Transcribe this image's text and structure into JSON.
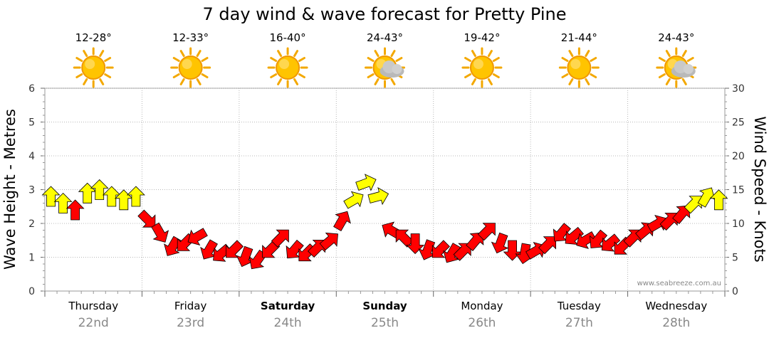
{
  "chart_data": {
    "type": "line",
    "title": "7 day wind & wave forecast for Pretty Pine",
    "ylabel_left": "Wave Height - Metres",
    "ylabel_right": "Wind Speed - Knots",
    "ylim_left": [
      0,
      6
    ],
    "ylim_right": [
      0,
      30
    ],
    "yticks_left": [
      "0",
      "1",
      "2",
      "3",
      "4",
      "5",
      "6"
    ],
    "yticks_right": [
      "0",
      "5",
      "10",
      "15",
      "20",
      "25",
      "30"
    ],
    "grid": true,
    "credit": "www.seabreeze.com.au",
    "days": [
      {
        "name": "Thursday",
        "date": "22nd",
        "temp": "12-28°",
        "weather": "sunny",
        "bold": false
      },
      {
        "name": "Friday",
        "date": "23rd",
        "temp": "12-33°",
        "weather": "sunny",
        "bold": false
      },
      {
        "name": "Saturday",
        "date": "24th",
        "temp": "16-40°",
        "weather": "sunny",
        "bold": true
      },
      {
        "name": "Sunday",
        "date": "25th",
        "temp": "24-43°",
        "weather": "partly-cloudy",
        "bold": true
      },
      {
        "name": "Monday",
        "date": "26th",
        "temp": "19-42°",
        "weather": "sunny",
        "bold": false
      },
      {
        "name": "Tuesday",
        "date": "27th",
        "temp": "21-44°",
        "weather": "sunny",
        "bold": false
      },
      {
        "name": "Wednesday",
        "date": "28th",
        "temp": "24-43°",
        "weather": "partly-cloudy",
        "bold": false
      }
    ],
    "series": [
      {
        "unit": "knots",
        "colors": {
          "light": "#ffff00",
          "strong": "#ff0000"
        },
        "threshold_knots": 13,
        "x": [
          0.0,
          0.125,
          0.25,
          0.375,
          0.5,
          0.625,
          0.75,
          0.875,
          1.0,
          1.125,
          1.25,
          1.375,
          1.5,
          1.625,
          1.75,
          1.875,
          2.0,
          2.125,
          2.25,
          2.375,
          2.5,
          2.625,
          2.75,
          2.875,
          3.0,
          3.125,
          3.25,
          3.375,
          3.5,
          3.625,
          3.75,
          3.875,
          4.0,
          4.125,
          4.25,
          4.375,
          4.5,
          4.625,
          4.75,
          4.875,
          5.0,
          5.125,
          5.25,
          5.375,
          5.5,
          5.625,
          5.75,
          5.875,
          6.0,
          6.125,
          6.25,
          6.375,
          6.5,
          6.625,
          6.75,
          6.875
        ],
        "values": [
          14,
          13,
          12,
          14.5,
          15,
          14,
          13.5,
          14,
          10.5,
          8.5,
          6.5,
          7,
          8,
          6,
          5.5,
          6,
          5,
          4.5,
          6,
          8,
          6,
          5.5,
          6.5,
          7.5,
          10.5,
          13.5,
          16,
          14,
          9,
          8,
          7,
          6,
          6,
          5.5,
          6,
          7.5,
          9,
          7,
          6,
          5.5,
          6,
          7,
          8.5,
          8,
          7.5,
          7.5,
          7,
          6.5,
          8,
          9,
          10,
          10.5,
          11.5,
          13,
          14,
          13.5
        ],
        "dir_deg": [
          0,
          0,
          0,
          0,
          0,
          0,
          0,
          0,
          135,
          150,
          210,
          225,
          240,
          210,
          230,
          225,
          200,
          215,
          225,
          45,
          220,
          225,
          45,
          50,
          30,
          60,
          70,
          75,
          300,
          315,
          180,
          200,
          225,
          210,
          45,
          40,
          45,
          200,
          180,
          190,
          60,
          45,
          220,
          230,
          240,
          220,
          230,
          225,
          45,
          50,
          60,
          45,
          40,
          45,
          30,
          0
        ]
      }
    ]
  }
}
